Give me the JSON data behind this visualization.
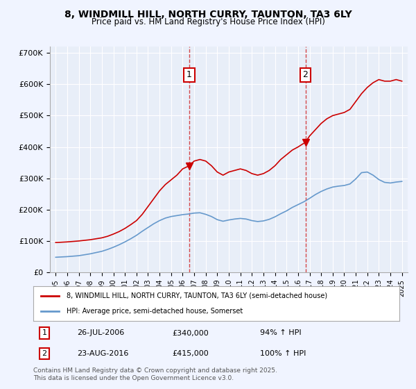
{
  "title": "8, WINDMILL HILL, NORTH CURRY, TAUNTON, TA3 6LY",
  "subtitle": "Price paid vs. HM Land Registry's House Price Index (HPI)",
  "background_color": "#f0f4ff",
  "plot_bg_color": "#e8eef8",
  "legend_line1": "8, WINDMILL HILL, NORTH CURRY, TAUNTON, TA3 6LY (semi-detached house)",
  "legend_line2": "HPI: Average price, semi-detached house, Somerset",
  "footer": "Contains HM Land Registry data © Crown copyright and database right 2025.\nThis data is licensed under the Open Government Licence v3.0.",
  "annotation1": {
    "label": "1",
    "date": "26-JUL-2006",
    "price": "£340,000",
    "hpi": "94% ↑ HPI",
    "x": 2006.57
  },
  "annotation2": {
    "label": "2",
    "date": "23-AUG-2016",
    "price": "£415,000",
    "hpi": "100% ↑ HPI",
    "x": 2016.64
  },
  "red_color": "#cc0000",
  "blue_color": "#6699cc",
  "marker1_x": 2006.57,
  "marker1_y": 340000,
  "marker2_x": 2016.64,
  "marker2_y": 415000,
  "ylim": [
    0,
    720000
  ],
  "xlim": [
    1994.5,
    2025.5
  ],
  "red_line": {
    "years": [
      1995,
      1995.5,
      1996,
      1996.5,
      1997,
      1997.5,
      1998,
      1998.5,
      1999,
      1999.5,
      2000,
      2000.5,
      2001,
      2001.5,
      2002,
      2002.5,
      2003,
      2003.5,
      2004,
      2004.5,
      2005,
      2005.5,
      2006,
      2006.57,
      2007,
      2007.5,
      2008,
      2008.5,
      2009,
      2009.5,
      2010,
      2010.5,
      2011,
      2011.5,
      2012,
      2012.5,
      2013,
      2013.5,
      2014,
      2014.5,
      2015,
      2015.5,
      2016,
      2016.64,
      2017,
      2017.5,
      2018,
      2018.5,
      2019,
      2019.5,
      2020,
      2020.5,
      2021,
      2021.5,
      2022,
      2022.5,
      2023,
      2023.5,
      2024,
      2024.5,
      2025
    ],
    "values": [
      95000,
      96000,
      97000,
      98500,
      100000,
      102000,
      104000,
      107000,
      110000,
      115000,
      122000,
      130000,
      140000,
      152000,
      165000,
      185000,
      210000,
      235000,
      260000,
      280000,
      295000,
      310000,
      330000,
      340000,
      355000,
      360000,
      355000,
      340000,
      320000,
      310000,
      320000,
      325000,
      330000,
      325000,
      315000,
      310000,
      315000,
      325000,
      340000,
      360000,
      375000,
      390000,
      400000,
      415000,
      435000,
      455000,
      475000,
      490000,
      500000,
      505000,
      510000,
      520000,
      545000,
      570000,
      590000,
      605000,
      615000,
      610000,
      610000,
      615000,
      610000
    ]
  },
  "blue_line": {
    "years": [
      1995,
      1995.5,
      1996,
      1996.5,
      1997,
      1997.5,
      1998,
      1998.5,
      1999,
      1999.5,
      2000,
      2000.5,
      2001,
      2001.5,
      2002,
      2002.5,
      2003,
      2003.5,
      2004,
      2004.5,
      2005,
      2005.5,
      2006,
      2006.5,
      2007,
      2007.5,
      2008,
      2008.5,
      2009,
      2009.5,
      2010,
      2010.5,
      2011,
      2011.5,
      2012,
      2012.5,
      2013,
      2013.5,
      2014,
      2014.5,
      2015,
      2015.5,
      2016,
      2016.5,
      2017,
      2017.5,
      2018,
      2018.5,
      2019,
      2019.5,
      2020,
      2020.5,
      2021,
      2021.5,
      2022,
      2022.5,
      2023,
      2023.5,
      2024,
      2024.5,
      2025
    ],
    "values": [
      48000,
      49000,
      50000,
      51500,
      53000,
      56000,
      59000,
      63000,
      67000,
      73000,
      80000,
      88000,
      97000,
      107000,
      118000,
      131000,
      143000,
      155000,
      165000,
      173000,
      178000,
      181000,
      184000,
      186000,
      189000,
      190000,
      185000,
      178000,
      168000,
      163000,
      167000,
      170000,
      172000,
      170000,
      165000,
      162000,
      164000,
      169000,
      177000,
      187000,
      196000,
      207000,
      216000,
      225000,
      236000,
      248000,
      258000,
      266000,
      272000,
      275000,
      277000,
      282000,
      298000,
      318000,
      320000,
      310000,
      296000,
      287000,
      285000,
      288000,
      290000
    ]
  },
  "yticks": [
    0,
    100000,
    200000,
    300000,
    400000,
    500000,
    600000,
    700000
  ],
  "ytick_labels": [
    "£0",
    "£100K",
    "£200K",
    "£300K",
    "£400K",
    "£500K",
    "£600K",
    "£700K"
  ],
  "xticks": [
    1995,
    1996,
    1997,
    1998,
    1999,
    2000,
    2001,
    2002,
    2003,
    2004,
    2005,
    2006,
    2007,
    2008,
    2009,
    2010,
    2011,
    2012,
    2013,
    2014,
    2015,
    2016,
    2017,
    2018,
    2019,
    2020,
    2021,
    2022,
    2023,
    2024,
    2025
  ]
}
